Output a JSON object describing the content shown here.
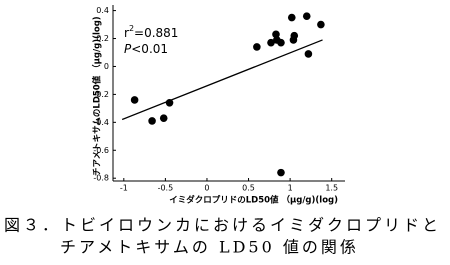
{
  "chart_data": {
    "type": "scatter",
    "x_label": "イミダクロプリドのLD50値 （μg/g)(log)",
    "y_label": "チアメトキサムのLD50値 （μg/g)(log)",
    "r2_annotation": {
      "base": "r",
      "sup": "2",
      "text": "=0.881"
    },
    "p_annotation": {
      "italic": "P",
      "text": "<0.01"
    },
    "x": [
      -0.87,
      -0.66,
      -0.52,
      -0.45,
      0.6,
      0.77,
      0.83,
      0.84,
      0.89,
      1.02,
      1.04,
      1.05,
      1.2,
      1.22,
      1.37,
      0.89
    ],
    "values": [
      -0.24,
      -0.39,
      -0.37,
      -0.26,
      0.14,
      0.17,
      0.23,
      0.19,
      0.17,
      0.35,
      0.19,
      0.22,
      0.36,
      0.09,
      0.3,
      -0.76
    ],
    "color": "#000000",
    "regression": {
      "x": [
        -1.02,
        1.39
      ],
      "y": [
        -0.38,
        0.19
      ]
    },
    "xlim": [
      -1.13,
      1.66
    ],
    "ylim": [
      -0.82,
      0.44
    ],
    "xticks": [
      -1,
      -0.5,
      0,
      0.5,
      1,
      1.5
    ],
    "yticks": [
      0.4,
      0.2,
      0,
      -0.2,
      -0.4,
      -0.6,
      -0.8
    ]
  },
  "caption": {
    "line1": "図３．トビイロウンカにおけるイミダクロプリドと",
    "line2": "チアメトキサムの LD50 値の関係"
  }
}
